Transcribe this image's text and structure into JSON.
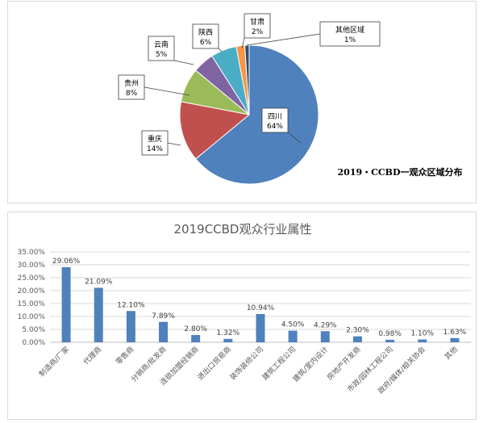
{
  "chart_data": [
    {
      "type": "pie",
      "title": "2019・CCBD一观众区域分布",
      "legend": "none",
      "slices": [
        {
          "label": "四川",
          "value": 64,
          "value_label": "64%",
          "color": "#4F81BD"
        },
        {
          "label": "重庆",
          "value": 14,
          "value_label": "14%",
          "color": "#C0504D"
        },
        {
          "label": "贵州",
          "value": 8,
          "value_label": "8%",
          "color": "#9BBB59"
        },
        {
          "label": "云南",
          "value": 5,
          "value_label": "5%",
          "color": "#8064A2"
        },
        {
          "label": "陕西",
          "value": 6,
          "value_label": "6%",
          "color": "#4BACC6"
        },
        {
          "label": "甘肃",
          "value": 2,
          "value_label": "2%",
          "color": "#F79646"
        },
        {
          "label": "其他区域",
          "value": 1,
          "value_label": "1%",
          "color": "#2C4D75"
        }
      ]
    },
    {
      "type": "bar",
      "title": "2019CCBD观众行业属性",
      "xlabel": "",
      "ylabel": "",
      "ylim": [
        0,
        35
      ],
      "yticks": [
        "0.00%",
        "5.00%",
        "10.00%",
        "15.00%",
        "20.00%",
        "25.00%",
        "30.00%",
        "35.00%"
      ],
      "grid": true,
      "legend": "none",
      "bar_color": "#4F81BD",
      "categories": [
        "制造商/厂家",
        "代理商",
        "零售商",
        "分销商/批发商",
        "连锁加盟经销商",
        "进出口贸易商",
        "装饰装修公司",
        "建筑工程公司",
        "建筑/室内设计",
        "房地产开发商",
        "市政/园林工程公司",
        "政府/媒体/相关协会",
        "其他"
      ],
      "values": [
        29.06,
        21.09,
        12.1,
        7.89,
        2.8,
        1.32,
        10.94,
        4.5,
        4.29,
        2.3,
        0.98,
        1.1,
        1.63
      ],
      "value_labels": [
        "29.06%",
        "21.09%",
        "12.10%",
        "7.89%",
        "2.80%",
        "1.32%",
        "10.94%",
        "4.50%",
        "4.29%",
        "2.30%",
        "0.98%",
        "1.10%",
        "1.63%"
      ]
    }
  ]
}
